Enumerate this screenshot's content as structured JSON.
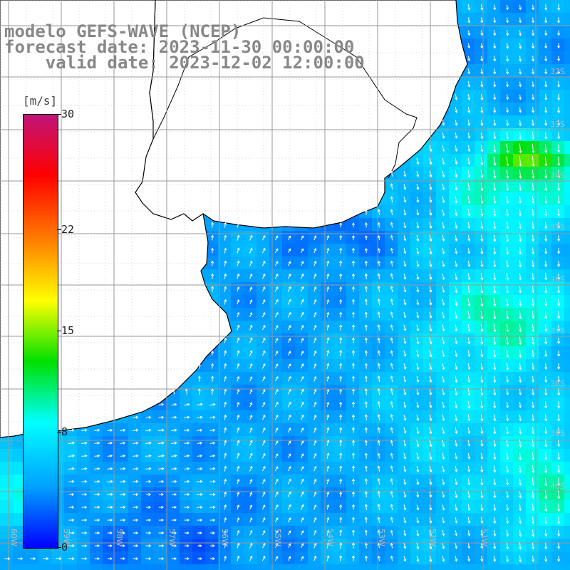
{
  "title": {
    "line1": "modelo GEFS-WAVE (NCEP)",
    "line2": "forecast date: 2023-11-30 00:00:00",
    "line3": "    valid date: 2023-12-02 12:00:00"
  },
  "legend": {
    "unit": "[m/s]",
    "min": 0,
    "max": 30,
    "ticks": [
      {
        "value": 30,
        "label": "30"
      },
      {
        "value": 22,
        "label": "22"
      },
      {
        "value": 15,
        "label": "15"
      },
      {
        "value": 8,
        "label": "8"
      },
      {
        "value": 0,
        "label": "0"
      }
    ],
    "colors": [
      "#0000ff",
      "#00a0ff",
      "#00ffff",
      "#00e000",
      "#ffff00",
      "#ff7f00",
      "#ff0000",
      "#c0147a"
    ]
  },
  "lon_labels": [
    "60W",
    "59W",
    "58W",
    "57W",
    "56W",
    "55W",
    "54W",
    "53W",
    "52W",
    "51W"
  ],
  "lat_labels": [
    "32S",
    "33S",
    "34S",
    "35S",
    "36S",
    "37S",
    "38S",
    "39S",
    "40S"
  ],
  "map_colors": {
    "land": "#ffffff",
    "coast": "#000000",
    "grid": "#999999",
    "arrow": "#ffffff"
  }
}
